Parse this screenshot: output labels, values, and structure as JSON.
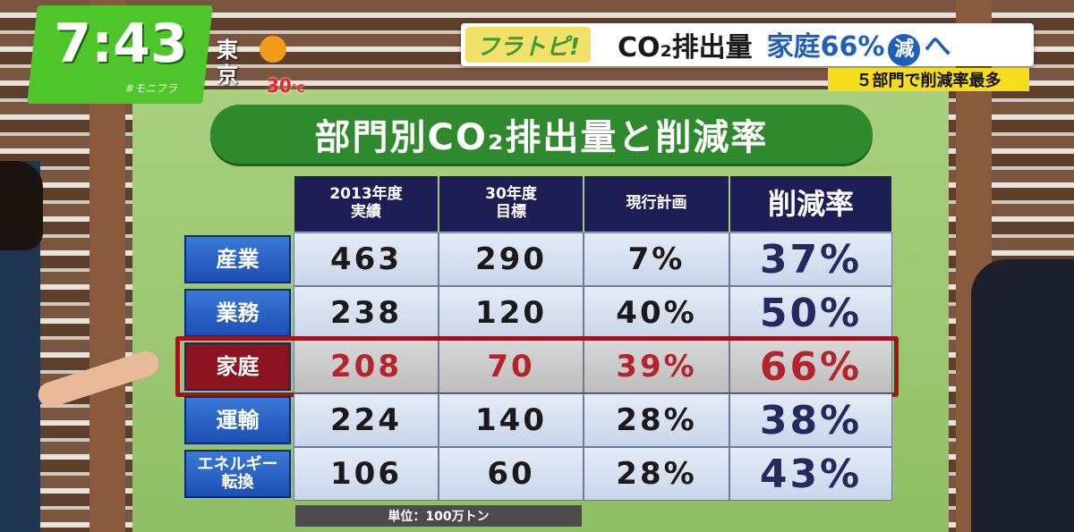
{
  "overlay": {
    "time": "7:43",
    "hashtag": "#モニフラ",
    "city": "東京",
    "temperature": "30",
    "temp_unit": "℃",
    "brand": "フラトピ!",
    "headline": "CO₂排出量",
    "headline_2": "家庭66%",
    "headline_circle": "減",
    "headline_3": "へ",
    "subheadline": "５部門で削減率最多"
  },
  "board": {
    "title": "部門別CO₂排出量と削減率",
    "table": {
      "columns": [
        "2013年度\n実績",
        "30年度\n目標",
        "現行計画",
        "削減率"
      ],
      "rows": [
        [
          "産業",
          "463",
          "290",
          "7%",
          "37%"
        ],
        [
          "業務",
          "238",
          "120",
          "40%",
          "50%"
        ],
        [
          "家庭",
          "208",
          "70",
          "39%",
          "66%"
        ],
        [
          "運輸",
          "224",
          "140",
          "28%",
          "38%"
        ],
        [
          "エネルギー\n転換",
          "106",
          "60",
          "28%",
          "43%"
        ]
      ]
    },
    "note": "単位：100万トン"
  }
}
